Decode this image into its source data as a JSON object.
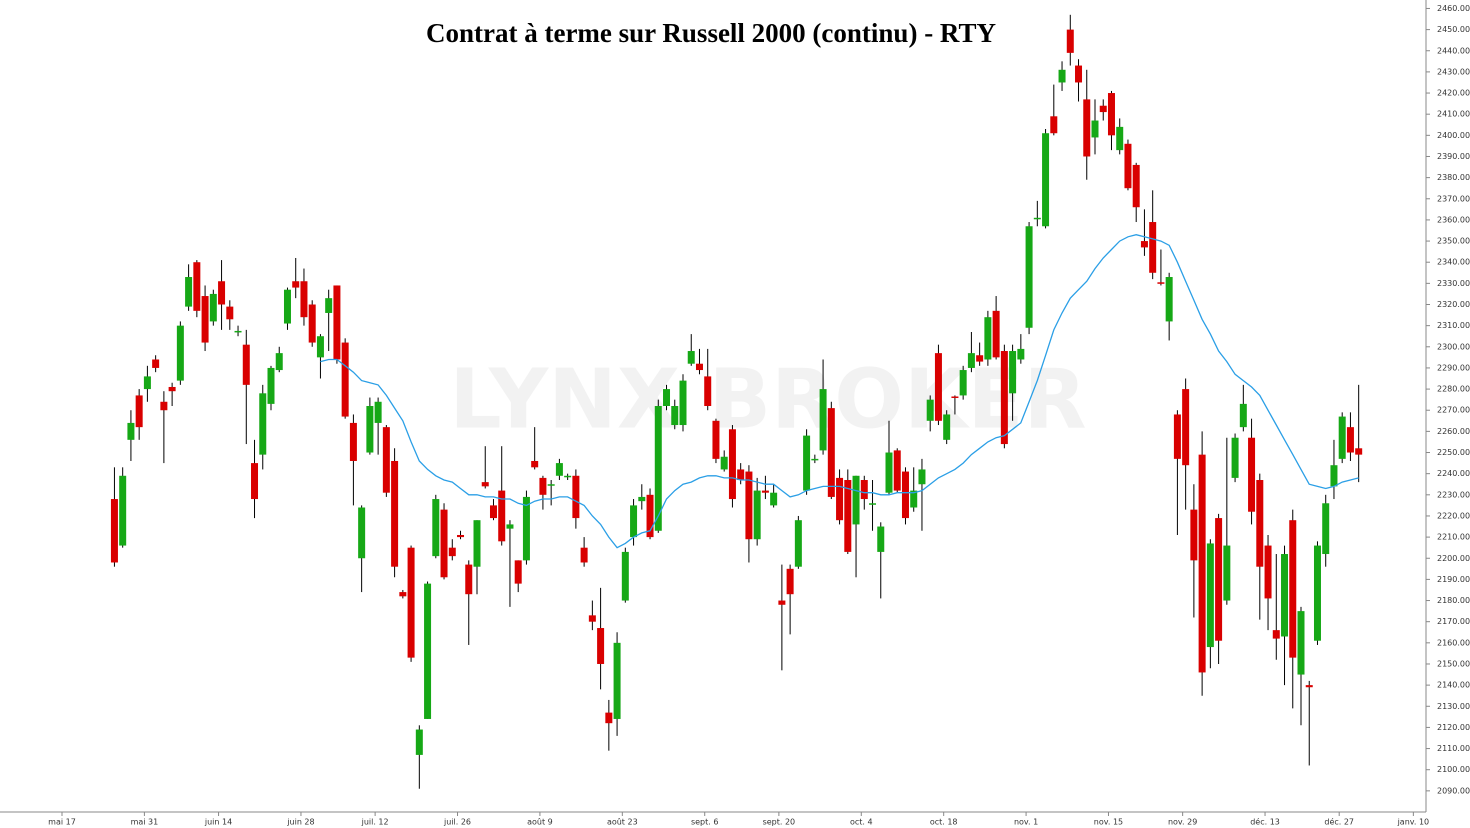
{
  "chart_data": {
    "type": "candlestick",
    "title": "Contrat à terme sur Russell 2000 (continu) - RTY",
    "watermark": "LYNX BROKER",
    "up_color": "#16a816",
    "down_color": "#d90000",
    "categories": [
      "mai 17",
      null,
      null,
      null,
      null,
      null,
      null,
      null,
      null,
      null,
      "mai 31",
      null,
      null,
      null,
      null,
      null,
      null,
      null,
      null,
      "juin 14",
      null,
      null,
      null,
      null,
      null,
      null,
      null,
      null,
      null,
      "juin 28",
      null,
      null,
      null,
      null,
      null,
      null,
      null,
      null,
      "juil. 12",
      null,
      null,
      null,
      null,
      null,
      null,
      null,
      null,
      null,
      "juil. 26",
      null,
      null,
      null,
      null,
      null,
      null,
      null,
      null,
      null,
      "août 9",
      null,
      null,
      null,
      null,
      null,
      null,
      null,
      null,
      null,
      "août 23",
      null,
      null,
      null,
      null,
      null,
      null,
      null,
      null,
      null,
      "sept. 6",
      null,
      null,
      null,
      null,
      null,
      null,
      null,
      null,
      "sept. 20",
      null,
      null,
      null,
      null,
      null,
      null,
      null,
      null,
      null,
      "oct. 4",
      null,
      null,
      null,
      null,
      null,
      null,
      null,
      null,
      null,
      "oct. 18",
      null,
      null,
      null,
      null,
      null,
      null,
      null,
      null,
      null,
      "nov. 1",
      null,
      null,
      null,
      null,
      null,
      null,
      null,
      null,
      null,
      "nov. 15",
      null,
      null,
      null,
      null,
      null,
      null,
      null,
      null,
      "nov. 29",
      null,
      null,
      null,
      null,
      null,
      null,
      null,
      null,
      null,
      "déc. 13",
      null,
      null,
      null,
      null,
      null,
      null,
      null,
      null,
      "déc. 27",
      null,
      null,
      null,
      null,
      null,
      null,
      null,
      null,
      "janv. 10"
    ],
    "open": [
      null,
      null,
      null,
      null,
      null,
      null,
      2228,
      2206,
      2256,
      2277,
      2280,
      2294,
      2274,
      2281,
      2284,
      2319,
      2340,
      2324,
      2312,
      2331,
      2319,
      2307,
      2301,
      2245,
      2249,
      2273,
      2289,
      2311,
      2331,
      2331,
      2320,
      2295,
      2316,
      2329,
      2302,
      2264,
      2200,
      2250,
      2264,
      2262,
      2246,
      2184,
      2205,
      2107,
      2124,
      2201,
      2223,
      2205,
      2211,
      2197,
      2196,
      2236,
      2225,
      2232,
      2214,
      2199,
      2199,
      2246,
      2238,
      2234.5,
      2239,
      2238.5,
      2239,
      2205,
      2173,
      2167,
      2127,
      2124,
      2180,
      2210,
      2227,
      2230,
      2213,
      2272,
      2263,
      2263,
      2292,
      2292,
      2286,
      2265,
      2242,
      2261,
      2242,
      2241,
      2209,
      2232,
      2225,
      2180,
      2195,
      2196,
      2232,
      2246.5,
      2251,
      2271,
      2238,
      2237,
      2216,
      2237,
      2225.5,
      2203,
      2231,
      2251,
      2241,
      2224,
      2235,
      2265,
      2297,
      2256,
      2276.5,
      2277,
      2290,
      2296,
      2294,
      2317,
      2298,
      2278,
      2294,
      2309,
      2360.5,
      2357,
      2409,
      2425,
      2450,
      2433,
      2417,
      2399,
      2414,
      2420,
      2393,
      2396,
      2386,
      2350,
      2359,
      2330.5,
      2312,
      2268,
      2280,
      2223,
      2249,
      2158,
      2219,
      2180,
      2238,
      2262,
      2257,
      2237,
      2206,
      2166,
      2163,
      2218,
      2145,
      2140,
      2161,
      2202,
      2234,
      2247,
      2262,
      2252,
      null,
      null,
      null,
      null,
      null,
      null,
      null
    ],
    "high": [
      null,
      null,
      null,
      null,
      null,
      null,
      2243,
      2243,
      2270,
      2280,
      2291,
      2296,
      2279,
      2283,
      2312,
      2339,
      2341,
      2329,
      2327,
      2341,
      2322,
      2310,
      2308,
      2256,
      2282,
      2291,
      2300,
      2328,
      2342,
      2337,
      2322,
      2306,
      2327,
      2329,
      2304,
      2268,
      2225,
      2276,
      2276,
      2263,
      2252,
      2185,
      2206,
      2121,
      2189,
      2230,
      2226,
      2209,
      2213,
      2199,
      2218,
      2253,
      2228,
      2253,
      2218,
      2199,
      2232,
      2262,
      2239,
      2237,
      2247,
      2240,
      2242,
      2210,
      2180,
      2186,
      2133,
      2165,
      2205,
      2228,
      2235,
      2233,
      2275,
      2282,
      2275,
      2287,
      2306,
      2299,
      2299,
      2266,
      2251,
      2263,
      2245,
      2244,
      2238,
      2239,
      2235,
      2197,
      2197,
      2220,
      2261,
      2249,
      2294,
      2274,
      2242,
      2242,
      2239,
      2239,
      2237,
      2217,
      2265,
      2252,
      2243,
      2243,
      2247,
      2277,
      2301,
      2270,
      2277,
      2291,
      2307,
      2302,
      2317,
      2324,
      2301,
      2301,
      2306,
      2359,
      2369,
      2403,
      2424,
      2435,
      2457,
      2436,
      2431,
      2417,
      2417,
      2421,
      2408,
      2398,
      2387,
      2365,
      2374,
      2346,
      2335,
      2270,
      2285,
      2235,
      2260,
      2209,
      2221,
      2257,
      2259,
      2282,
      2266,
      2240,
      2211,
      2202,
      2206,
      2223,
      2177,
      2142,
      2208,
      2230,
      2256,
      2269,
      2269,
      2282,
      null,
      null,
      null,
      null,
      null,
      null,
      null
    ],
    "low": [
      null,
      null,
      null,
      null,
      null,
      null,
      2196,
      2205,
      2246,
      2256,
      2274,
      2288,
      2245,
      2272,
      2282,
      2317,
      2314,
      2298,
      2310,
      2308,
      2308,
      2305,
      2254,
      2219,
      2242,
      2270,
      2288,
      2308,
      2323,
      2310,
      2300,
      2285,
      2298,
      2292,
      2266,
      2225,
      2184,
      2249,
      2249,
      2229,
      2191,
      2181,
      2151,
      2091,
      2124,
      2200,
      2190,
      2199,
      2209,
      2159,
      2183,
      2233,
      2218,
      2206,
      2177,
      2184,
      2197,
      2242,
      2223,
      2225,
      2237,
      2237,
      2214,
      2196,
      2166,
      2138,
      2109,
      2116,
      2179,
      2206,
      2223,
      2209,
      2212,
      2270,
      2261,
      2260,
      2291,
      2287,
      2270,
      2245,
      2241,
      2224,
      2235,
      2198,
      2206,
      2228,
      2224,
      2147,
      2164,
      2195,
      2230,
      2245,
      2249,
      2228,
      2216,
      2202,
      2191,
      2223,
      2213,
      2181,
      2230,
      2231,
      2216,
      2222,
      2213,
      2260,
      2263,
      2254,
      2268,
      2275,
      2288,
      2291,
      2291,
      2294,
      2252,
      2265,
      2292,
      2306,
      2357,
      2356,
      2400,
      2421,
      2433,
      2416,
      2379,
      2391,
      2407,
      2393,
      2391,
      2374,
      2359,
      2343,
      2332,
      2329,
      2303,
      2211,
      2223,
      2172,
      2135,
      2148,
      2150,
      2178,
      2236,
      2260,
      2216,
      2171,
      2166,
      2152,
      2140,
      2129,
      2121,
      2102,
      2159,
      2196,
      2228,
      2245,
      2246,
      2236,
      null,
      null,
      null,
      null,
      null,
      null,
      null
    ],
    "close": [
      null,
      null,
      null,
      null,
      null,
      null,
      2198,
      2239,
      2264,
      2262,
      2286,
      2290,
      2270,
      2279,
      2310,
      2333,
      2317,
      2302,
      2325,
      2320,
      2313,
      2307.5,
      2282,
      2228,
      2278,
      2290,
      2297,
      2327,
      2328,
      2314,
      2302,
      2305,
      2323,
      2294,
      2267,
      2246,
      2224,
      2272,
      2274,
      2231,
      2196,
      2182,
      2153,
      2119,
      2188,
      2228,
      2191,
      2201,
      2210,
      2183,
      2218,
      2234,
      2219,
      2208,
      2216,
      2188,
      2229,
      2243,
      2230,
      2235,
      2245,
      2239,
      2219,
      2198,
      2170,
      2150,
      2122,
      2160,
      2203,
      2225,
      2229,
      2210,
      2272,
      2280,
      2272,
      2284,
      2298,
      2289,
      2272,
      2247,
      2248,
      2228,
      2237,
      2209,
      2232,
      2231,
      2231,
      2178,
      2183,
      2218,
      2258,
      2247,
      2280,
      2229,
      2218,
      2203,
      2239,
      2228,
      2226,
      2215,
      2250,
      2232,
      2219,
      2232,
      2242,
      2275,
      2265,
      2268,
      2276,
      2289,
      2297,
      2293,
      2314,
      2295,
      2254,
      2298,
      2299,
      2357,
      2361,
      2401,
      2401,
      2431,
      2439,
      2425,
      2390,
      2407,
      2411,
      2400,
      2404,
      2375,
      2366,
      2347,
      2335,
      2330,
      2333,
      2247,
      2244,
      2199,
      2146,
      2207,
      2161,
      2206,
      2257,
      2273,
      2222,
      2196,
      2181,
      2162,
      2202,
      2153,
      2175,
      2139,
      2206,
      2226,
      2244,
      2267,
      2250,
      2249,
      null,
      null,
      null,
      null,
      null,
      null,
      null
    ],
    "ma": {
      "color": "#2b9fe6",
      "values": [
        null,
        null,
        null,
        null,
        null,
        null,
        null,
        null,
        null,
        null,
        null,
        null,
        null,
        null,
        null,
        null,
        null,
        null,
        null,
        null,
        null,
        null,
        null,
        null,
        null,
        null,
        null,
        null,
        null,
        null,
        null,
        2293,
        2294,
        2294,
        2291,
        2288,
        2284,
        2283,
        2282,
        2277,
        2271,
        2265,
        2255,
        2246,
        2242,
        2239,
        2237,
        2236,
        2233,
        2230,
        2230,
        2229,
        2229,
        2228,
        2228,
        2226,
        2225,
        2227,
        2228,
        2228,
        2229,
        2229,
        2227,
        2225,
        2220,
        2216,
        2210,
        2205,
        2207,
        2210,
        2212,
        2213,
        2220,
        2228,
        2232,
        2235,
        2236,
        2238,
        2239,
        2239,
        2238,
        2238,
        2237,
        2237,
        2236,
        2235,
        2235,
        2232,
        2229,
        2230,
        2232,
        2233,
        2234,
        2234,
        2234,
        2233,
        2232,
        2231,
        2231,
        2230,
        2230,
        2231,
        2231,
        2231,
        2232,
        2235,
        2238,
        2240,
        2242,
        2245,
        2249,
        2252,
        2255,
        2257,
        2258,
        2261,
        2264,
        2274,
        2284,
        2296,
        2308,
        2316,
        2323,
        2327,
        2331,
        2337,
        2342,
        2346,
        2350,
        2352,
        2353,
        2352,
        2351,
        2350,
        2348,
        2340,
        2331,
        2322,
        2313,
        2306,
        2298,
        2293,
        2287,
        2284,
        2281,
        2277,
        2270,
        2263,
        2256,
        2249,
        2242,
        2235,
        2234,
        2233,
        2234,
        2236,
        2237,
        2238,
        null,
        null,
        null,
        null,
        null,
        null,
        null
      ]
    },
    "ylim": [
      2080,
      2464
    ],
    "yticks": [
      {
        "value": 2090,
        "label": "2090.00"
      },
      {
        "value": 2100,
        "label": "2100.00"
      },
      {
        "value": 2110,
        "label": "2110.00"
      },
      {
        "value": 2120,
        "label": "2120.00"
      },
      {
        "value": 2130,
        "label": "2130.00"
      },
      {
        "value": 2140,
        "label": "2140.00"
      },
      {
        "value": 2150,
        "label": "2150.00"
      },
      {
        "value": 2160,
        "label": "2160.00"
      },
      {
        "value": 2170,
        "label": "2170.00"
      },
      {
        "value": 2180,
        "label": "2180.00"
      },
      {
        "value": 2190,
        "label": "2190.00"
      },
      {
        "value": 2200,
        "label": "2200.00"
      },
      {
        "value": 2210,
        "label": "2210.00"
      },
      {
        "value": 2220,
        "label": "2220.00"
      },
      {
        "value": 2230,
        "label": "2230.00"
      },
      {
        "value": 2240,
        "label": "2240.00"
      },
      {
        "value": 2250,
        "label": "2250.00"
      },
      {
        "value": 2260,
        "label": "2260.00"
      },
      {
        "value": 2270,
        "label": "2270.00"
      },
      {
        "value": 2280,
        "label": "2280.00"
      },
      {
        "value": 2290,
        "label": "2290.00"
      },
      {
        "value": 2300,
        "label": "2300.00"
      },
      {
        "value": 2310,
        "label": "2310.00"
      },
      {
        "value": 2320,
        "label": "2320.00"
      },
      {
        "value": 2330,
        "label": "2330.00"
      },
      {
        "value": 2340,
        "label": "2340.00"
      },
      {
        "value": 2350,
        "label": "2350.00"
      },
      {
        "value": 2360,
        "label": "2360.00"
      },
      {
        "value": 2370,
        "label": "2370.00"
      },
      {
        "value": 2380,
        "label": "2380.00"
      },
      {
        "value": 2390,
        "label": "2390.00"
      },
      {
        "value": 2400,
        "label": "2400.00"
      },
      {
        "value": 2410,
        "label": "2410.00"
      },
      {
        "value": 2420,
        "label": "2420.00"
      },
      {
        "value": 2430,
        "label": "2430.00"
      },
      {
        "value": 2440,
        "label": "2440.00"
      },
      {
        "value": 2450,
        "label": "2450.00"
      },
      {
        "value": 2460,
        "label": "2460.00"
      }
    ]
  }
}
